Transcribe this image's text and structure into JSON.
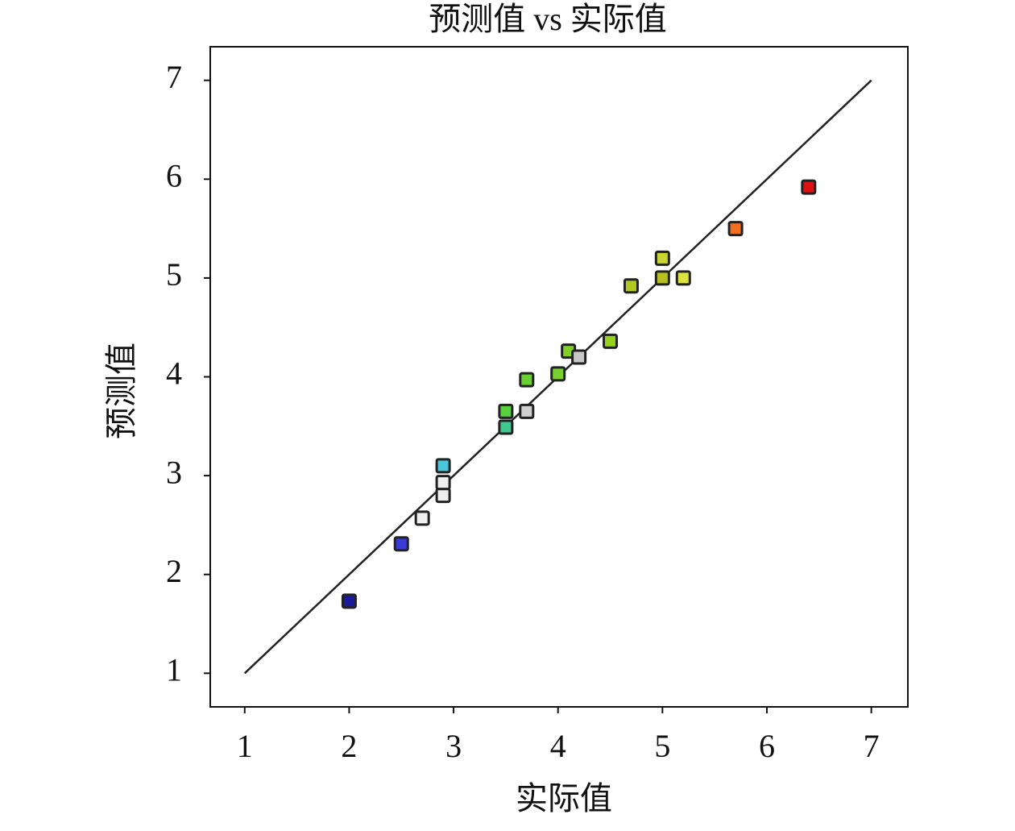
{
  "chart_data": {
    "type": "scatter",
    "title": "预测值 vs 实际值",
    "xlabel": "实际值",
    "ylabel": "预测值",
    "x": [
      2.0,
      2.5,
      2.7,
      2.9,
      2.9,
      2.9,
      3.5,
      3.5,
      3.7,
      3.7,
      4.0,
      4.1,
      4.2,
      4.5,
      4.7,
      5.0,
      5.0,
      5.2,
      5.7,
      6.4
    ],
    "y": [
      1.73,
      2.31,
      2.57,
      2.8,
      2.93,
      3.1,
      3.49,
      3.65,
      3.65,
      3.97,
      4.03,
      4.26,
      4.2,
      4.36,
      4.92,
      5.0,
      5.2,
      5.0,
      5.5,
      5.92
    ],
    "colors": [
      "#1a1a9c",
      "#3a3ad8",
      "#f0f0f0",
      "#f0f0f0",
      "#f0f0f0",
      "#48c8dc",
      "#40c890",
      "#58d040",
      "#d0d0d0",
      "#68d030",
      "#78d030",
      "#80d028",
      "#c8c8c8",
      "#98d020",
      "#b0c820",
      "#b8c020",
      "#cad432",
      "#dce240",
      "#f07020",
      "#e01010"
    ],
    "reference_line": {
      "x": [
        1,
        7
      ],
      "y": [
        1,
        7
      ]
    },
    "xlim": [
      0.67,
      7.35
    ],
    "ylim": [
      0.66,
      7.34
    ],
    "xticks": [
      1,
      2,
      3,
      4,
      5,
      6,
      7
    ],
    "yticks": [
      1,
      2,
      3,
      4,
      5,
      6,
      7
    ]
  }
}
